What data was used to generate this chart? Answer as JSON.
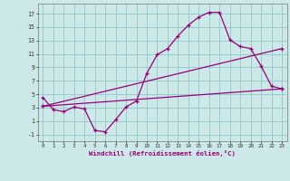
{
  "xlabel": "Windchill (Refroidissement éolien,°C)",
  "xlim": [
    -0.5,
    23.5
  ],
  "ylim": [
    -2.0,
    18.5
  ],
  "yticks": [
    -1,
    1,
    3,
    5,
    7,
    9,
    11,
    13,
    15,
    17
  ],
  "xticks": [
    0,
    1,
    2,
    3,
    4,
    5,
    6,
    7,
    8,
    9,
    10,
    11,
    12,
    13,
    14,
    15,
    16,
    17,
    18,
    19,
    20,
    21,
    22,
    23
  ],
  "bg_color": "#cce8e8",
  "line_color": "#990077",
  "grid_color": "#99cccc",
  "curve1_x": [
    0,
    1,
    2,
    3,
    4,
    5,
    6,
    7,
    8,
    9,
    10,
    11,
    12,
    13,
    14,
    15,
    16,
    17,
    18,
    19,
    20,
    21,
    22,
    23
  ],
  "curve1_y": [
    4.5,
    2.7,
    2.4,
    3.1,
    2.8,
    -0.4,
    -0.6,
    1.2,
    3.1,
    4.0,
    8.1,
    10.9,
    11.8,
    13.7,
    15.3,
    16.5,
    17.2,
    17.2,
    13.1,
    12.1,
    11.8,
    9.2,
    6.2,
    5.8
  ],
  "curve2_x": [
    0,
    23
  ],
  "curve2_y": [
    3.2,
    5.8
  ],
  "curve3_x": [
    0,
    23
  ],
  "curve3_y": [
    3.2,
    11.8
  ],
  "marker": "+"
}
